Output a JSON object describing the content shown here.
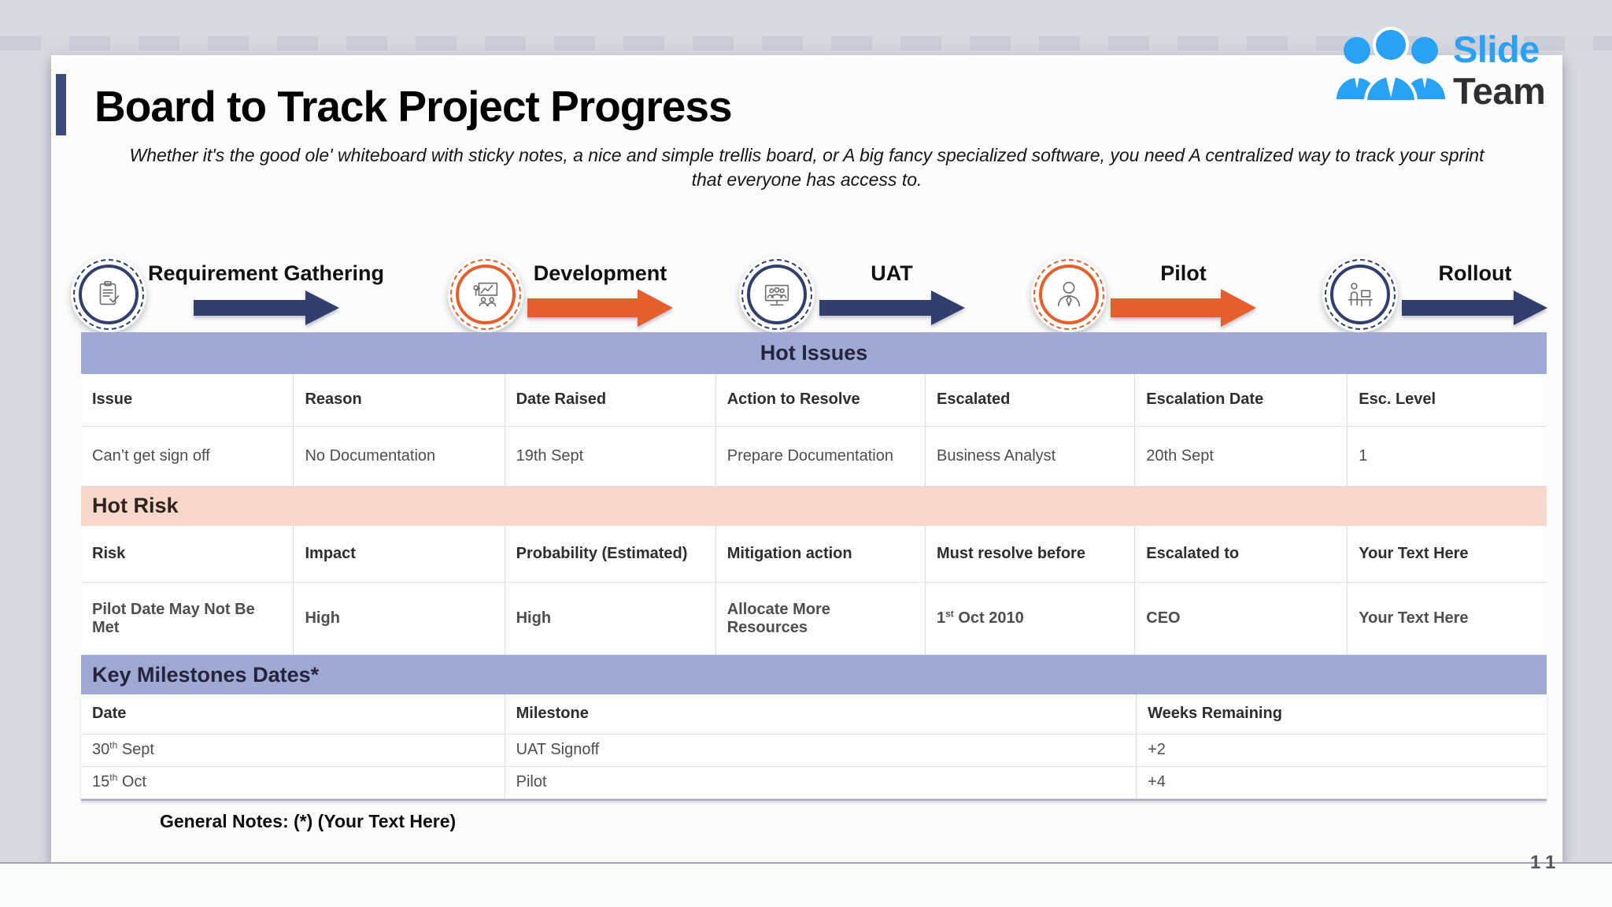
{
  "page": {
    "title": "Board to Track Project Progress",
    "subtitle": "Whether it's the good ole' whiteboard with sticky notes, a nice and simple trellis board, or A big fancy specialized software, you need A centralized way to track your sprint that everyone has access to.",
    "page_number": "11"
  },
  "logo": {
    "line1": "Slide",
    "line2": "Team"
  },
  "colors": {
    "navy": "#323e6e",
    "orange": "#e65e2b",
    "band_periwinkle": "#a0a8d4",
    "band_pink": "#f8d8cb",
    "logo_blue": "#29a2f6"
  },
  "process_flow": {
    "steps": [
      {
        "label": "Requirement Gathering",
        "icon": "clipboard-check-icon",
        "accent": "navy"
      },
      {
        "label": "Development",
        "icon": "presentation-icon",
        "accent": "orange"
      },
      {
        "label": "UAT",
        "icon": "monitor-users-icon",
        "accent": "navy"
      },
      {
        "label": "Pilot",
        "icon": "businessman-icon",
        "accent": "orange"
      },
      {
        "label": "Rollout",
        "icon": "workstation-icon",
        "accent": "navy"
      }
    ]
  },
  "hot_issues": {
    "title": "Hot Issues",
    "ordinal_sup": false,
    "columns": [
      "Issue",
      "Reason",
      "Date Raised",
      "Action to Resolve",
      "Escalated",
      "Escalation Date",
      "Esc. Level"
    ],
    "rows": [
      [
        "Can’t get sign off",
        "No Documentation",
        "19th Sept",
        "Prepare Documentation",
        "Business Analyst",
        "20th Sept",
        "1"
      ]
    ]
  },
  "hot_risk": {
    "title": "Hot Risk",
    "ordinal_sup": true,
    "columns": [
      "Risk",
      "Impact",
      "Probability (Estimated)",
      "Mitigation action",
      "Must resolve before",
      "Escalated to",
      "Your Text Here"
    ],
    "rows": [
      [
        "Pilot Date May Not Be Met",
        "High",
        "High",
        "Allocate More Resources",
        "1st Oct 2010",
        "CEO",
        "Your Text Here"
      ]
    ]
  },
  "key_milestones": {
    "title": "Key Milestones Dates*",
    "ordinal_sup": true,
    "columns": [
      "Date",
      "Milestone",
      "Weeks Remaining"
    ],
    "rows": [
      [
        "30th Sept",
        "UAT Signoff",
        "+2"
      ],
      [
        "15th Oct",
        "Pilot",
        "+4"
      ]
    ]
  },
  "notes": {
    "general": "General Notes: (*) (Your Text Here)"
  }
}
